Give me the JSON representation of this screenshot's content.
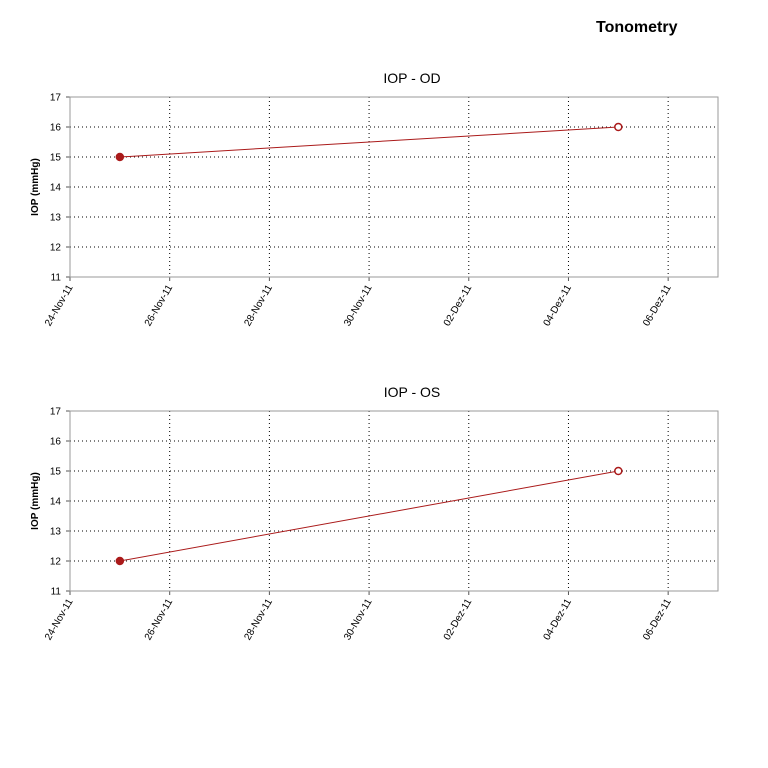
{
  "page": {
    "title": "Tonometry"
  },
  "colors": {
    "series": "#aa1a1a",
    "grid": "#000000",
    "axis": "#9a9a9a"
  },
  "chart_data": [
    {
      "type": "line",
      "title": "IOP - OD",
      "xlabel": "",
      "ylabel": "IOP (mmHg)",
      "x_ticks": [
        "24-Nov-11",
        "26-Nov-11",
        "28-Nov-11",
        "30-Nov-11",
        "02-Dez-11",
        "04-Dez-11",
        "06-Dez-11"
      ],
      "xlim": [
        "2011-11-24",
        "2011-12-07"
      ],
      "ylim": [
        11,
        17
      ],
      "y_ticks": [
        11,
        12,
        13,
        14,
        15,
        16,
        17
      ],
      "grid": true,
      "series": [
        {
          "x": [
            "2011-11-25",
            "2011-12-05"
          ],
          "values": [
            15,
            16
          ]
        }
      ]
    },
    {
      "type": "line",
      "title": "IOP - OS",
      "xlabel": "",
      "ylabel": "IOP (mmHg)",
      "x_ticks": [
        "24-Nov-11",
        "26-Nov-11",
        "28-Nov-11",
        "30-Nov-11",
        "02-Dez-11",
        "04-Dez-11",
        "06-Dez-11"
      ],
      "xlim": [
        "2011-11-24",
        "2011-12-07"
      ],
      "ylim": [
        11,
        17
      ],
      "y_ticks": [
        11,
        12,
        13,
        14,
        15,
        16,
        17
      ],
      "grid": true,
      "series": [
        {
          "x": [
            "2011-11-25",
            "2011-12-05"
          ],
          "values": [
            12,
            15
          ]
        }
      ]
    }
  ]
}
